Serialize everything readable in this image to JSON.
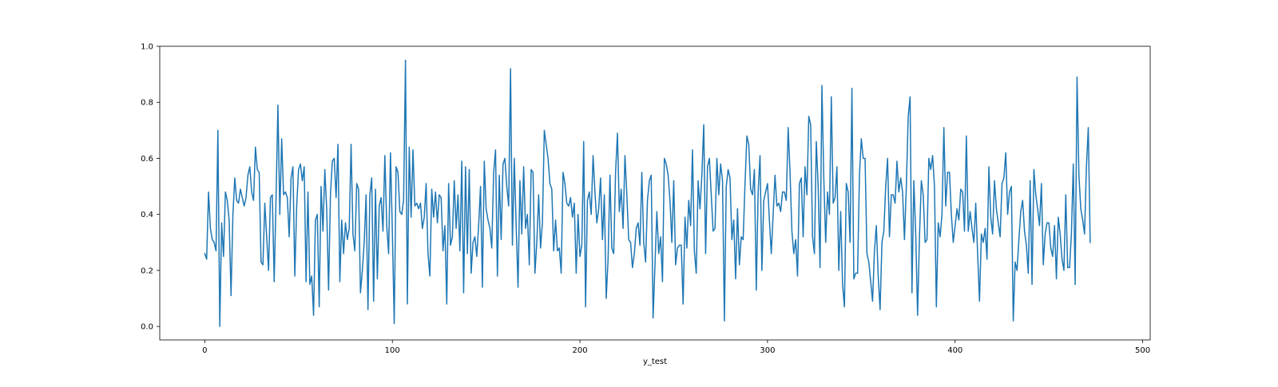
{
  "chart_data": {
    "type": "line",
    "title": "",
    "xlabel": "y_test",
    "ylabel": "",
    "xlim": [
      -24,
      504
    ],
    "ylim": [
      -0.048,
      1.0
    ],
    "xticks": [
      0,
      100,
      200,
      300,
      400,
      500
    ],
    "yticks": [
      0.0,
      0.2,
      0.4,
      0.6,
      0.8,
      1.0
    ],
    "xtick_labels": [
      "0",
      "100",
      "200",
      "300",
      "400",
      "500"
    ],
    "ytick_labels": [
      "0.0",
      "0.2",
      "0.4",
      "0.6",
      "0.8",
      "1.0"
    ],
    "grid": false,
    "legend": "none",
    "series": [
      {
        "color": "#1f77b4",
        "x_start": 0,
        "x_step": 1,
        "values": [
          0.26,
          0.24,
          0.48,
          0.35,
          0.31,
          0.3,
          0.27,
          0.7,
          0.0,
          0.37,
          0.25,
          0.48,
          0.45,
          0.38,
          0.11,
          0.4,
          0.53,
          0.45,
          0.44,
          0.49,
          0.46,
          0.43,
          0.46,
          0.54,
          0.57,
          0.48,
          0.45,
          0.64,
          0.56,
          0.55,
          0.23,
          0.22,
          0.44,
          0.32,
          0.2,
          0.46,
          0.47,
          0.16,
          0.46,
          0.79,
          0.4,
          0.67,
          0.47,
          0.48,
          0.46,
          0.32,
          0.53,
          0.57,
          0.18,
          0.43,
          0.56,
          0.58,
          0.52,
          0.57,
          0.16,
          0.48,
          0.15,
          0.18,
          0.04,
          0.38,
          0.4,
          0.07,
          0.5,
          0.34,
          0.56,
          0.42,
          0.13,
          0.47,
          0.59,
          0.6,
          0.46,
          0.65,
          0.16,
          0.38,
          0.26,
          0.37,
          0.31,
          0.35,
          0.65,
          0.33,
          0.27,
          0.51,
          0.49,
          0.12,
          0.2,
          0.3,
          0.47,
          0.06,
          0.47,
          0.53,
          0.09,
          0.49,
          0.17,
          0.43,
          0.46,
          0.34,
          0.61,
          0.36,
          0.26,
          0.62,
          0.34,
          0.01,
          0.57,
          0.55,
          0.41,
          0.4,
          0.45,
          0.95,
          0.08,
          0.64,
          0.39,
          0.63,
          0.43,
          0.44,
          0.42,
          0.44,
          0.35,
          0.39,
          0.51,
          0.26,
          0.18,
          0.49,
          0.39,
          0.48,
          0.37,
          0.47,
          0.46,
          0.27,
          0.36,
          0.08,
          0.51,
          0.29,
          0.32,
          0.52,
          0.35,
          0.47,
          0.27,
          0.59,
          0.12,
          0.57,
          0.26,
          0.56,
          0.19,
          0.3,
          0.32,
          0.25,
          0.36,
          0.5,
          0.14,
          0.59,
          0.42,
          0.38,
          0.35,
          0.28,
          0.55,
          0.63,
          0.18,
          0.54,
          0.31,
          0.58,
          0.6,
          0.5,
          0.43,
          0.92,
          0.29,
          0.6,
          0.36,
          0.14,
          0.52,
          0.33,
          0.57,
          0.35,
          0.4,
          0.22,
          0.56,
          0.55,
          0.19,
          0.3,
          0.47,
          0.28,
          0.37,
          0.7,
          0.65,
          0.6,
          0.51,
          0.49,
          0.27,
          0.38,
          0.27,
          0.28,
          0.19,
          0.55,
          0.51,
          0.44,
          0.43,
          0.46,
          0.39,
          0.44,
          0.19,
          0.4,
          0.25,
          0.29,
          0.66,
          0.07,
          0.45,
          0.48,
          0.4,
          0.61,
          0.48,
          0.37,
          0.42,
          0.53,
          0.31,
          0.47,
          0.1,
          0.24,
          0.54,
          0.28,
          0.26,
          0.55,
          0.69,
          0.41,
          0.49,
          0.35,
          0.61,
          0.47,
          0.31,
          0.3,
          0.21,
          0.26,
          0.35,
          0.37,
          0.29,
          0.55,
          0.3,
          0.23,
          0.45,
          0.52,
          0.54,
          0.03,
          0.22,
          0.41,
          0.26,
          0.32,
          0.16,
          0.6,
          0.58,
          0.54,
          0.45,
          0.3,
          0.52,
          0.22,
          0.28,
          0.29,
          0.29,
          0.08,
          0.39,
          0.28,
          0.45,
          0.36,
          0.63,
          0.27,
          0.19,
          0.52,
          0.42,
          0.54,
          0.72,
          0.26,
          0.57,
          0.6,
          0.47,
          0.34,
          0.35,
          0.6,
          0.47,
          0.58,
          0.52,
          0.02,
          0.5,
          0.56,
          0.53,
          0.31,
          0.38,
          0.17,
          0.42,
          0.22,
          0.32,
          0.31,
          0.51,
          0.68,
          0.65,
          0.49,
          0.47,
          0.56,
          0.13,
          0.48,
          0.61,
          0.2,
          0.45,
          0.48,
          0.51,
          0.38,
          0.26,
          0.4,
          0.54,
          0.43,
          0.44,
          0.41,
          0.48,
          0.48,
          0.45,
          0.71,
          0.55,
          0.34,
          0.26,
          0.31,
          0.18,
          0.51,
          0.53,
          0.32,
          0.57,
          0.47,
          0.75,
          0.72,
          0.32,
          0.26,
          0.66,
          0.5,
          0.21,
          0.86,
          0.53,
          0.3,
          0.48,
          0.4,
          0.82,
          0.44,
          0.46,
          0.57,
          0.2,
          0.41,
          0.15,
          0.07,
          0.51,
          0.48,
          0.3,
          0.85,
          0.17,
          0.19,
          0.19,
          0.54,
          0.67,
          0.6,
          0.6,
          0.26,
          0.23,
          0.16,
          0.09,
          0.27,
          0.36,
          0.18,
          0.06,
          0.3,
          0.34,
          0.5,
          0.6,
          0.32,
          0.47,
          0.47,
          0.44,
          0.59,
          0.48,
          0.53,
          0.48,
          0.31,
          0.5,
          0.75,
          0.82,
          0.12,
          0.52,
          0.33,
          0.04,
          0.32,
          0.52,
          0.47,
          0.3,
          0.31,
          0.6,
          0.56,
          0.61,
          0.5,
          0.07,
          0.37,
          0.32,
          0.4,
          0.71,
          0.43,
          0.55,
          0.55,
          0.4,
          0.3,
          0.36,
          0.42,
          0.38,
          0.49,
          0.48,
          0.34,
          0.68,
          0.34,
          0.41,
          0.35,
          0.3,
          0.44,
          0.26,
          0.09,
          0.33,
          0.3,
          0.35,
          0.24,
          0.57,
          0.39,
          0.33,
          0.52,
          0.42,
          0.37,
          0.32,
          0.51,
          0.53,
          0.62,
          0.4,
          0.48,
          0.5,
          0.02,
          0.23,
          0.2,
          0.31,
          0.41,
          0.45,
          0.34,
          0.29,
          0.19,
          0.52,
          0.15,
          0.56,
          0.47,
          0.42,
          0.36,
          0.51,
          0.22,
          0.33,
          0.37,
          0.37,
          0.28,
          0.25,
          0.36,
          0.17,
          0.39,
          0.33,
          0.24,
          0.2,
          0.47,
          0.21,
          0.21,
          0.33,
          0.58,
          0.15,
          0.89,
          0.54,
          0.42,
          0.38,
          0.33,
          0.57,
          0.71,
          0.3
        ]
      }
    ]
  }
}
